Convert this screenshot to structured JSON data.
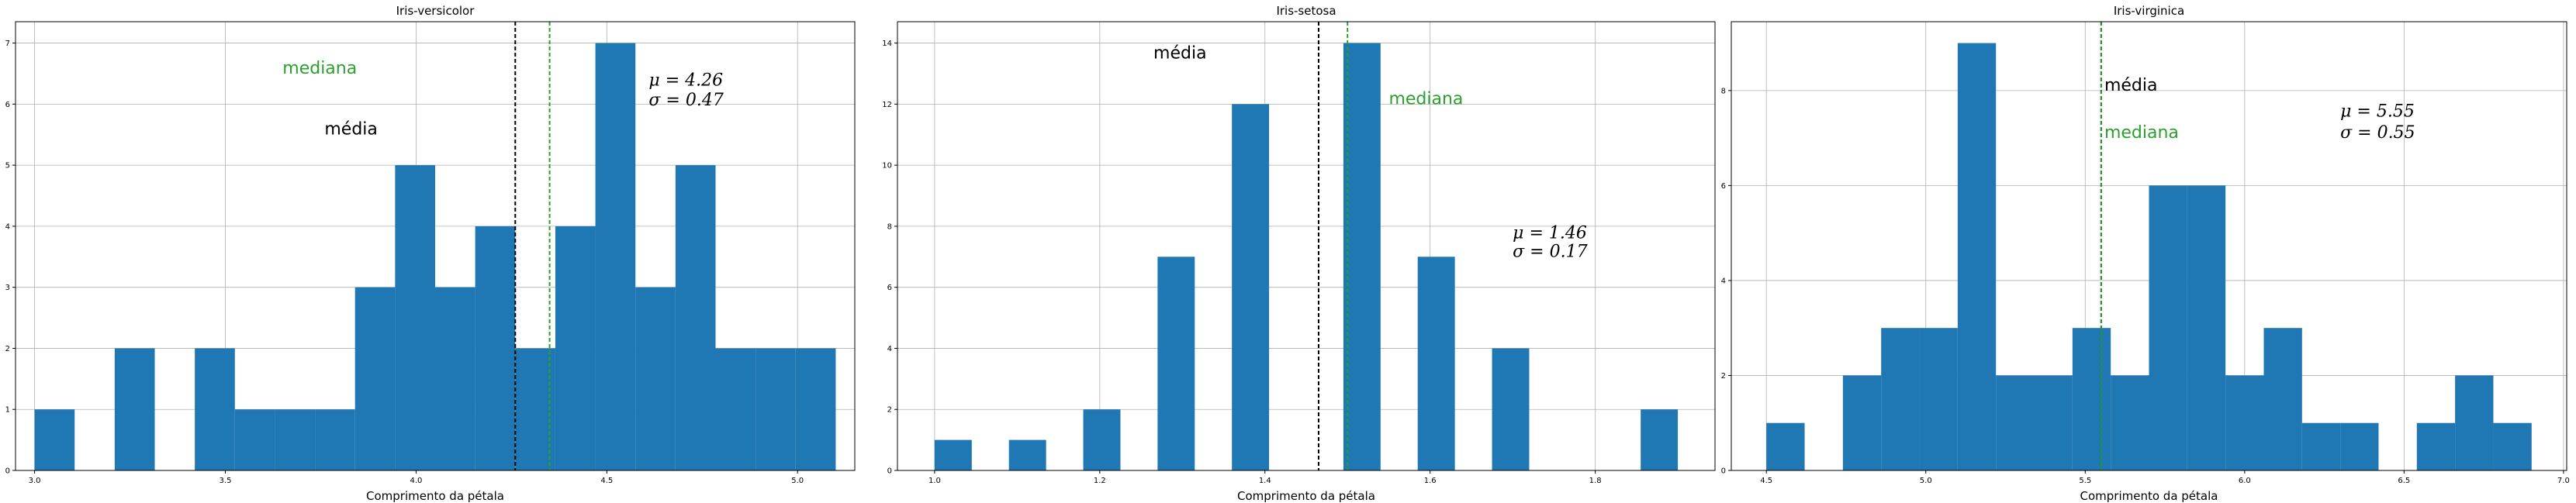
{
  "chart_data": [
    {
      "type": "histogram",
      "title": "Iris-versicolor",
      "xlabel": "Comprimento da pétala",
      "ylabel": "",
      "xlim": [
        2.95,
        5.15
      ],
      "ylim": [
        0,
        7.35
      ],
      "xticks": [
        "3.0",
        "3.5",
        "4.0",
        "4.5",
        "5.0"
      ],
      "yticks": [
        "0",
        "1",
        "2",
        "3",
        "4",
        "5",
        "6",
        "7"
      ],
      "grid": true,
      "bar_color": "#1f77b4",
      "bins": [
        {
          "x0": 3.0,
          "x1": 3.105,
          "count": 1
        },
        {
          "x0": 3.21,
          "x1": 3.315,
          "count": 2
        },
        {
          "x0": 3.42,
          "x1": 3.525,
          "count": 2
        },
        {
          "x0": 3.525,
          "x1": 3.63,
          "count": 1
        },
        {
          "x0": 3.63,
          "x1": 3.735,
          "count": 1
        },
        {
          "x0": 3.735,
          "x1": 3.84,
          "count": 1
        },
        {
          "x0": 3.84,
          "x1": 3.945,
          "count": 3
        },
        {
          "x0": 3.945,
          "x1": 4.05,
          "count": 5
        },
        {
          "x0": 4.05,
          "x1": 4.155,
          "count": 3
        },
        {
          "x0": 4.155,
          "x1": 4.26,
          "count": 4
        },
        {
          "x0": 4.26,
          "x1": 4.365,
          "count": 2
        },
        {
          "x0": 4.365,
          "x1": 4.47,
          "count": 4
        },
        {
          "x0": 4.47,
          "x1": 4.575,
          "count": 7
        },
        {
          "x0": 4.575,
          "x1": 4.68,
          "count": 3
        },
        {
          "x0": 4.68,
          "x1": 4.785,
          "count": 5
        },
        {
          "x0": 4.785,
          "x1": 4.89,
          "count": 2
        },
        {
          "x0": 4.89,
          "x1": 4.995,
          "count": 2
        },
        {
          "x0": 4.995,
          "x1": 5.1,
          "count": 2
        }
      ],
      "mean": 4.26,
      "median": 4.35,
      "mean_color": "#000000",
      "median_color": "#2ca02c",
      "annotations": [
        {
          "text": "mediana",
          "x": 3.65,
          "y": 6.5,
          "color": "#2ca02c",
          "role": "median-label"
        },
        {
          "text": "média",
          "x": 3.76,
          "y": 5.5,
          "color": "#000000",
          "role": "mean-label"
        },
        {
          "text": "μ = 4.26",
          "x": 4.61,
          "y": 6.3,
          "color": "#000000",
          "role": "mu-stat"
        },
        {
          "text": "σ = 0.47",
          "x": 4.61,
          "y": 5.98,
          "color": "#000000",
          "role": "sigma-stat"
        }
      ]
    },
    {
      "type": "histogram",
      "title": "Iris-setosa",
      "xlabel": "Comprimento da pétala",
      "ylabel": "",
      "xlim": [
        0.955,
        1.945
      ],
      "ylim": [
        0,
        14.7
      ],
      "xticks": [
        "1.0",
        "1.2",
        "1.4",
        "1.6",
        "1.8"
      ],
      "yticks": [
        "0",
        "2",
        "4",
        "6",
        "8",
        "10",
        "12",
        "14"
      ],
      "grid": true,
      "bar_color": "#1f77b4",
      "bins": [
        {
          "x0": 1.0,
          "x1": 1.045,
          "count": 1
        },
        {
          "x0": 1.09,
          "x1": 1.135,
          "count": 1
        },
        {
          "x0": 1.18,
          "x1": 1.225,
          "count": 2
        },
        {
          "x0": 1.27,
          "x1": 1.315,
          "count": 7
        },
        {
          "x0": 1.36,
          "x1": 1.405,
          "count": 12
        },
        {
          "x0": 1.495,
          "x1": 1.54,
          "count": 14
        },
        {
          "x0": 1.585,
          "x1": 1.63,
          "count": 7
        },
        {
          "x0": 1.675,
          "x1": 1.72,
          "count": 4
        },
        {
          "x0": 1.855,
          "x1": 1.9,
          "count": 2
        }
      ],
      "mean": 1.465,
      "median": 1.5,
      "mean_color": "#000000",
      "median_color": "#2ca02c",
      "annotations": [
        {
          "text": "média",
          "x": 1.265,
          "y": 13.5,
          "color": "#000000",
          "role": "mean-label"
        },
        {
          "text": "mediana",
          "x": 1.55,
          "y": 12.0,
          "color": "#2ca02c",
          "role": "median-label"
        },
        {
          "text": "μ = 1.46",
          "x": 1.7,
          "y": 7.6,
          "color": "#000000",
          "role": "mu-stat"
        },
        {
          "text": "σ = 0.17",
          "x": 1.7,
          "y": 7.0,
          "color": "#000000",
          "role": "sigma-stat"
        }
      ]
    },
    {
      "type": "histogram",
      "title": "Iris-virginica",
      "xlabel": "Comprimento da pétala",
      "ylabel": "",
      "xlim": [
        4.39,
        7.01
      ],
      "ylim": [
        0,
        9.45
      ],
      "xticks": [
        "4.5",
        "5.0",
        "5.5",
        "6.0",
        "6.5",
        "7.0"
      ],
      "yticks": [
        "0",
        "2",
        "4",
        "6",
        "8"
      ],
      "grid": true,
      "bar_color": "#1f77b4",
      "bins": [
        {
          "x0": 4.5,
          "x1": 4.62,
          "count": 1
        },
        {
          "x0": 4.74,
          "x1": 4.86,
          "count": 2
        },
        {
          "x0": 4.86,
          "x1": 4.98,
          "count": 3
        },
        {
          "x0": 4.98,
          "x1": 5.1,
          "count": 3
        },
        {
          "x0": 5.1,
          "x1": 5.22,
          "count": 9
        },
        {
          "x0": 5.22,
          "x1": 5.34,
          "count": 2
        },
        {
          "x0": 5.34,
          "x1": 5.46,
          "count": 2
        },
        {
          "x0": 5.46,
          "x1": 5.58,
          "count": 3
        },
        {
          "x0": 5.58,
          "x1": 5.7,
          "count": 2
        },
        {
          "x0": 5.7,
          "x1": 5.82,
          "count": 6
        },
        {
          "x0": 5.82,
          "x1": 5.94,
          "count": 6
        },
        {
          "x0": 5.94,
          "x1": 6.06,
          "count": 2
        },
        {
          "x0": 6.06,
          "x1": 6.18,
          "count": 3
        },
        {
          "x0": 6.18,
          "x1": 6.3,
          "count": 1
        },
        {
          "x0": 6.3,
          "x1": 6.42,
          "count": 1
        },
        {
          "x0": 6.54,
          "x1": 6.66,
          "count": 1
        },
        {
          "x0": 6.66,
          "x1": 6.78,
          "count": 2
        },
        {
          "x0": 6.78,
          "x1": 6.9,
          "count": 1
        }
      ],
      "mean": 5.55,
      "median": 5.55,
      "mean_color": "#000000",
      "median_color": "#2ca02c",
      "annotations": [
        {
          "text": "média",
          "x": 5.56,
          "y": 8.0,
          "color": "#000000",
          "role": "mean-label"
        },
        {
          "text": "mediana",
          "x": 5.56,
          "y": 7.0,
          "color": "#2ca02c",
          "role": "median-label"
        },
        {
          "text": "μ = 5.55",
          "x": 6.3,
          "y": 7.45,
          "color": "#000000",
          "role": "mu-stat"
        },
        {
          "text": "σ = 0.55",
          "x": 6.3,
          "y": 7.0,
          "color": "#000000",
          "role": "sigma-stat"
        }
      ]
    }
  ]
}
